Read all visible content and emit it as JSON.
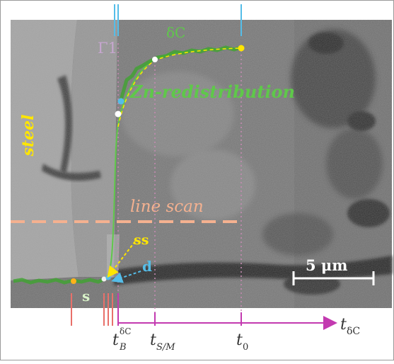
{
  "labels": {
    "steel": "steel",
    "delta_c": "δC",
    "gamma1": "Γ1",
    "zn_redistribution": "Zn-redistribution",
    "line_scan": "line scan",
    "ss": "ss",
    "d": "d",
    "s": "s",
    "scale_bar": "5 μm"
  },
  "axis": {
    "t_main": "t",
    "t_sub": "δC",
    "tB_main": "t",
    "tB_sub": "B",
    "tB_sup": "δC",
    "tSM_main": "t",
    "tSM_sub": "S/M",
    "t0_main": "t",
    "t0_sub": "0"
  },
  "colors": {
    "profile_green": "#5fc84a",
    "marker_yellow": "#ffe600",
    "label_pink": "#c78ab4",
    "line_scan_orange": "#f4b190",
    "axis_magenta": "#c33ab0",
    "marker_red": "#e8706a",
    "marker_blue": "#55bde8",
    "gamma_lavender": "#c6a6cf"
  }
}
